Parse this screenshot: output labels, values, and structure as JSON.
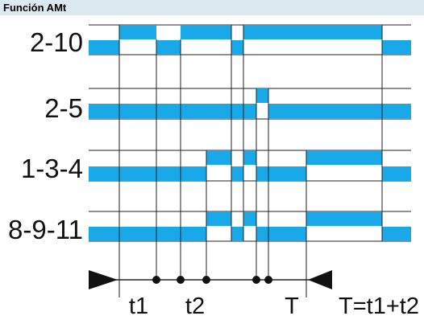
{
  "header": {
    "title": "Función AMt"
  },
  "colors": {
    "bar": "#1aa9e8",
    "line": "#222222",
    "header_bg": "#dde9f1"
  },
  "rows": [
    {
      "label": "2-10"
    },
    {
      "label": "2-5"
    },
    {
      "label": "1-3-4"
    },
    {
      "label": "8-9-11"
    }
  ],
  "time_labels": {
    "t1": "t1",
    "t2": "t2",
    "T": "T",
    "formula": "T=t1+t2"
  }
}
